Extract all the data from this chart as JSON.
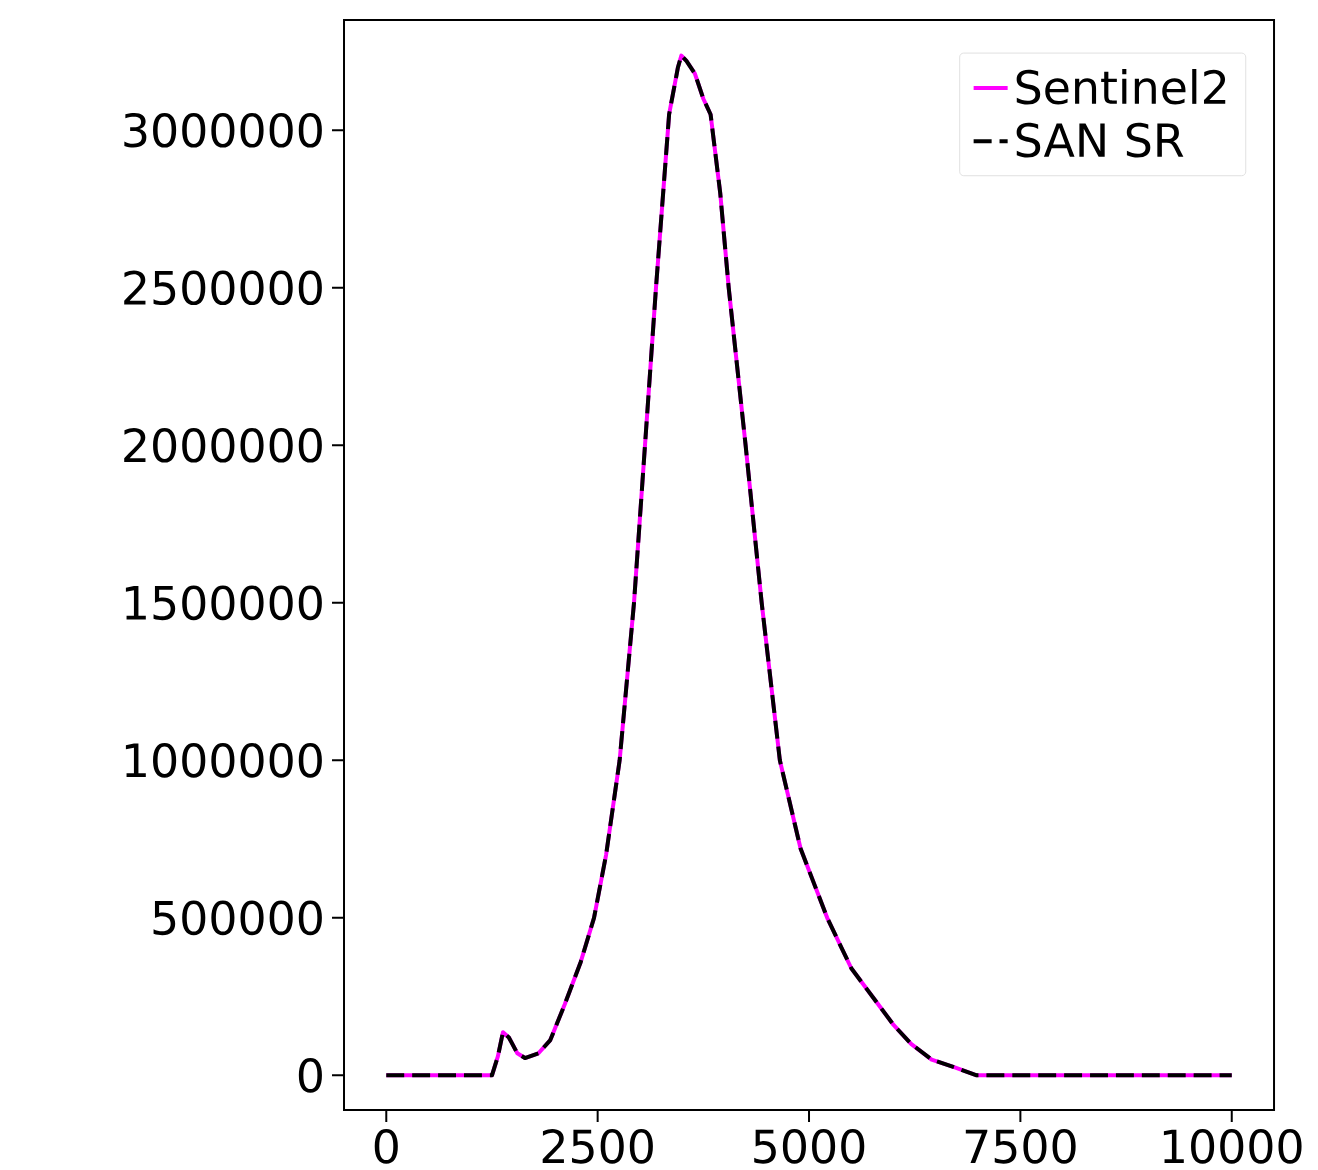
{
  "chart_data": {
    "type": "line",
    "xlim": [
      -500,
      10500
    ],
    "ylim": [
      -110000,
      3350000
    ],
    "xticks": [
      0,
      2500,
      5000,
      7500,
      10000
    ],
    "yticks": [
      0,
      500000,
      1000000,
      1500000,
      2000000,
      2500000,
      3000000
    ],
    "grid": false,
    "legend": "top right",
    "marker": "none",
    "x": [
      0,
      500,
      1000,
      1250,
      1320,
      1380,
      1450,
      1550,
      1640,
      1800,
      1940,
      2110,
      2300,
      2457,
      2600,
      2760,
      2930,
      3060,
      3190,
      3345,
      3450,
      3490,
      3550,
      3650,
      3750,
      3836,
      3950,
      4050,
      4250,
      4440,
      4655,
      4900,
      5215,
      5500,
      5820,
      6000,
      6207,
      6450,
      6724,
      6983,
      7500,
      8000,
      8500,
      9000,
      9500,
      10000
    ],
    "series": [
      {
        "name": "Sentinel2",
        "color": "#ff00ff",
        "line_style": "solid",
        "values": [
          0,
          0,
          0,
          0,
          60000,
          137000,
          120000,
          70000,
          55000,
          70000,
          112000,
          225000,
          360000,
          500000,
          700000,
          1000000,
          1500000,
          2000000,
          2500000,
          3050000,
          3200000,
          3237000,
          3220000,
          3180000,
          3100000,
          3050000,
          2800000,
          2500000,
          2000000,
          1500000,
          1000000,
          720000,
          500000,
          340000,
          225000,
          160000,
          100000,
          50000,
          25000,
          0,
          0,
          0,
          0,
          0,
          0,
          0
        ]
      },
      {
        "name": "SAN SR",
        "color": "#000000",
        "line_style": "dashed",
        "values": [
          0,
          0,
          0,
          0,
          60000,
          137000,
          120000,
          70000,
          55000,
          70000,
          112000,
          225000,
          360000,
          500000,
          700000,
          1000000,
          1500000,
          2000000,
          2500000,
          3050000,
          3200000,
          3237000,
          3220000,
          3180000,
          3100000,
          3050000,
          2800000,
          2500000,
          2000000,
          1500000,
          1000000,
          720000,
          500000,
          340000,
          225000,
          160000,
          100000,
          50000,
          25000,
          0,
          0,
          0,
          0,
          0,
          0,
          0
        ]
      }
    ]
  }
}
